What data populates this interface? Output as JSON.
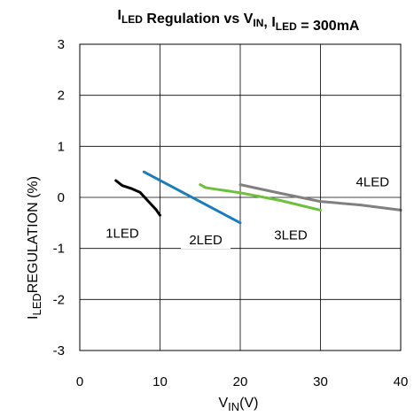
{
  "chart_data": {
    "type": "line",
    "title": {
      "parts": [
        {
          "text": "I",
          "sub": false
        },
        {
          "text": "LED",
          "sub": true
        },
        {
          "text": " Regulation vs V",
          "sub": false
        },
        {
          "text": "IN",
          "sub": true
        },
        {
          "text": ", I",
          "sub": false
        },
        {
          "text": "LED",
          "sub": true
        },
        {
          "text": " = 300mA",
          "sub": false
        }
      ]
    },
    "xlabel": {
      "main": "V",
      "sub": "IN",
      "rest": "(V)"
    },
    "ylabel": {
      "main": "I",
      "sub": "LED",
      "rest": "REGULATION (%)"
    },
    "xlim": [
      0,
      40
    ],
    "ylim": [
      -3,
      3
    ],
    "xticks": [
      0,
      10,
      20,
      30,
      40
    ],
    "yticks": [
      3,
      2,
      1,
      0,
      -1,
      -2,
      -3
    ],
    "xtick_labels": [
      "0",
      "10",
      "20",
      "30",
      "40"
    ],
    "ytick_labels": [
      "3",
      "2",
      "1",
      "0",
      "-1",
      "-2",
      "-3"
    ],
    "grid": true,
    "series": [
      {
        "name": "1LED",
        "color": "#000000",
        "x": [
          4.5,
          5.3,
          6.5,
          7.5,
          8.5,
          9.5,
          10
        ],
        "y": [
          0.33,
          0.23,
          0.17,
          0.1,
          -0.07,
          -0.24,
          -0.35
        ],
        "label_pos": [
          5.3,
          -0.72
        ]
      },
      {
        "name": "2LED",
        "color": "#1a7dbb",
        "x": [
          8,
          20
        ],
        "y": [
          0.5,
          -0.5
        ],
        "label_pos": [
          15.7,
          -0.85
        ]
      },
      {
        "name": "3LED",
        "color": "#6cc13a",
        "x": [
          15,
          15.7,
          17,
          20,
          25,
          30
        ],
        "y": [
          0.25,
          0.19,
          0.16,
          0.09,
          -0.06,
          -0.25
        ],
        "label_pos": [
          26.3,
          -0.75
        ]
      },
      {
        "name": "4LED",
        "color": "#808080",
        "x": [
          20,
          25,
          30,
          35,
          40
        ],
        "y": [
          0.25,
          0.08,
          -0.08,
          -0.15,
          -0.25
        ],
        "label_pos": [
          36.5,
          0.29
        ]
      }
    ]
  }
}
